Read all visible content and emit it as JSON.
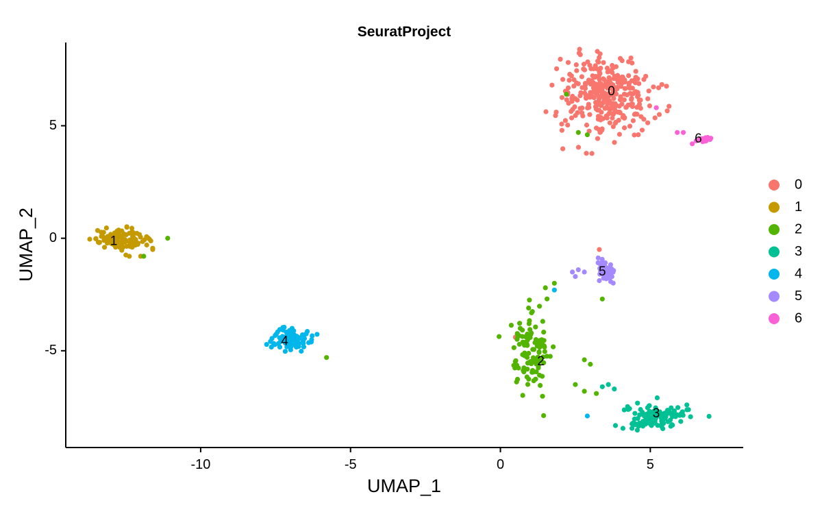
{
  "chart_data": {
    "type": "scatter",
    "title": "SeuratProject",
    "xlabel": "UMAP_1",
    "ylabel": "UMAP_2",
    "xlim": [
      -14.5,
      8.1
    ],
    "ylim": [
      -9.3,
      8.7
    ],
    "x_ticks": [
      -10,
      -5,
      0,
      5
    ],
    "y_ticks": [
      -5,
      0,
      5
    ],
    "grid": false,
    "legend": "right",
    "series": [
      {
        "name": "0",
        "color": "#F8766D",
        "center": [
          3.5,
          6.4
        ],
        "spread": [
          1.5,
          1.7
        ],
        "n": 330,
        "cluster_label": {
          "text": "0",
          "x": 3.7,
          "y": 6.5
        },
        "extra": [
          [
            0.5,
            -4.4
          ],
          [
            3.3,
            -0.5
          ],
          [
            4.6,
            4.6
          ],
          [
            5.3,
            5.5
          ],
          [
            3.2,
            4.9
          ]
        ]
      },
      {
        "name": "1",
        "color": "#C49A00",
        "center": [
          -12.7,
          -0.05
        ],
        "spread": [
          0.9,
          0.45
        ],
        "n": 110,
        "cluster_label": {
          "text": "1",
          "x": -12.9,
          "y": -0.15
        },
        "extra": [
          [
            -11.6,
            -0.5
          ],
          [
            -12.0,
            -0.8
          ],
          [
            -11.8,
            -0.3
          ]
        ]
      },
      {
        "name": "2",
        "color": "#53B400",
        "center": [
          1.0,
          -5.0
        ],
        "spread": [
          0.6,
          1.8
        ],
        "n": 120,
        "cluster_label": {
          "text": "2",
          "x": 1.35,
          "y": -5.5
        },
        "extra": [
          [
            -11.1,
            0.0
          ],
          [
            -11.9,
            -0.8
          ],
          [
            -5.8,
            -5.3
          ],
          [
            2.2,
            6.4
          ],
          [
            2.6,
            4.7
          ],
          [
            2.9,
            4.6
          ],
          [
            3.4,
            -2.7
          ],
          [
            2.8,
            -5.4
          ],
          [
            3.0,
            -5.6
          ],
          [
            2.5,
            -6.5
          ],
          [
            2.8,
            -6.8
          ],
          [
            3.2,
            -6.9
          ],
          [
            1.5,
            -2.2
          ],
          [
            1.8,
            -2.0
          ]
        ]
      },
      {
        "name": "3",
        "color": "#00C094",
        "center": [
          5.2,
          -7.9
        ],
        "spread": [
          1.1,
          0.55
        ],
        "n": 120,
        "cluster_label": {
          "text": "3",
          "x": 5.2,
          "y": -7.8
        },
        "extra": [
          [
            3.6,
            -6.5
          ],
          [
            3.8,
            -6.7
          ],
          [
            3.4,
            -6.6
          ]
        ]
      },
      {
        "name": "4",
        "color": "#00B6EB",
        "center": [
          -7.0,
          -4.5
        ],
        "spread": [
          0.6,
          0.55
        ],
        "n": 85,
        "cluster_label": {
          "text": "4",
          "x": -7.2,
          "y": -4.6
        },
        "extra": [
          [
            1.8,
            -2.3
          ],
          [
            2.9,
            -7.9
          ]
        ]
      },
      {
        "name": "5",
        "color": "#A58AFF",
        "center": [
          3.5,
          -1.5
        ],
        "spread": [
          0.35,
          0.5
        ],
        "n": 55,
        "cluster_label": {
          "text": "5",
          "x": 3.4,
          "y": -1.5
        },
        "extra": [
          [
            2.4,
            -1.5
          ],
          [
            2.6,
            -1.4
          ],
          [
            2.8,
            -1.5
          ],
          [
            2.5,
            -1.7
          ]
        ]
      },
      {
        "name": "6",
        "color": "#FB61D7",
        "center": [
          6.8,
          4.4
        ],
        "spread": [
          0.2,
          0.12
        ],
        "n": 20,
        "cluster_label": {
          "text": "6",
          "x": 6.6,
          "y": 4.4
        },
        "extra": [
          [
            5.9,
            4.7
          ],
          [
            6.1,
            4.7
          ],
          [
            6.4,
            4.2
          ],
          [
            5.2,
            5.8
          ]
        ]
      }
    ]
  }
}
